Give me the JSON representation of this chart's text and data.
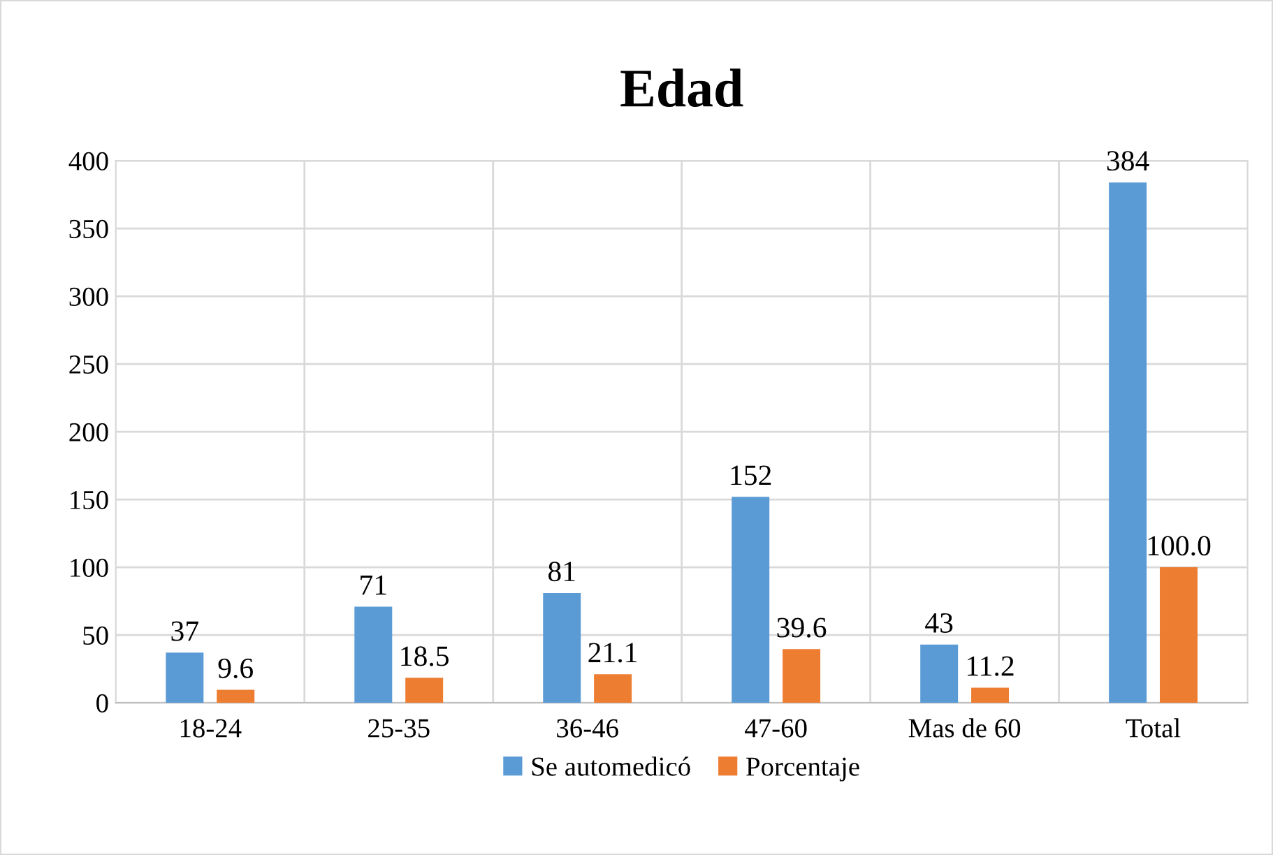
{
  "chart_data": {
    "type": "bar",
    "title": "Edad",
    "categories": [
      "18-24",
      "25-35",
      "36-46",
      "47-60",
      "Mas de 60",
      "Total"
    ],
    "series": [
      {
        "name": "Se automedicó",
        "color": "#5b9bd5",
        "values": [
          37,
          71,
          81,
          152,
          43,
          384
        ],
        "value_labels": [
          "37",
          "71",
          "81",
          "152",
          "43",
          "384"
        ]
      },
      {
        "name": "Porcentaje",
        "color": "#ed7d31",
        "values": [
          9.6,
          18.5,
          21.1,
          39.6,
          11.2,
          100.0
        ],
        "value_labels": [
          "9.6",
          "18.5",
          "21.1",
          "39.6",
          "11.2",
          "100.0"
        ]
      }
    ],
    "ylim": [
      0,
      400
    ],
    "yticks": [
      0,
      50,
      100,
      150,
      200,
      250,
      300,
      350,
      400
    ],
    "grid": true,
    "legend": "bottom"
  }
}
